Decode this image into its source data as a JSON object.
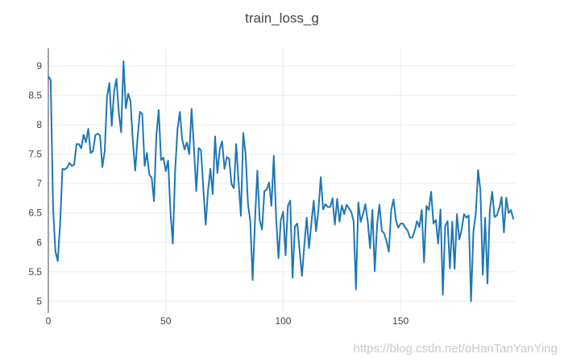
{
  "chart_data": {
    "type": "line",
    "title": "train_loss_g",
    "xlabel": "",
    "ylabel": "",
    "xlim": [
      0,
      199
    ],
    "ylim": [
      4.8,
      9.3
    ],
    "xticks": [
      0,
      50,
      100,
      150
    ],
    "yticks": [
      5,
      5.5,
      6,
      6.5,
      7,
      7.5,
      8,
      8.5,
      9
    ],
    "grid": true,
    "line_color": "#1f77b4",
    "series": [
      {
        "name": "",
        "y": [
          8.82,
          8.76,
          6.6,
          5.85,
          5.68,
          6.3,
          7.25,
          7.24,
          7.27,
          7.35,
          7.3,
          7.32,
          7.67,
          7.67,
          7.6,
          7.83,
          7.7,
          7.93,
          7.52,
          7.55,
          7.82,
          7.85,
          7.82,
          7.28,
          7.55,
          8.48,
          8.71,
          7.98,
          8.57,
          8.78,
          8.21,
          7.87,
          9.08,
          8.28,
          8.53,
          8.4,
          7.7,
          7.22,
          7.78,
          8.22,
          8.18,
          7.3,
          7.52,
          7.15,
          7.1,
          6.7,
          7.82,
          8.25,
          7.4,
          7.44,
          7.21,
          7.39,
          6.52,
          5.98,
          7.22,
          7.92,
          8.22,
          7.75,
          7.58,
          7.7,
          7.5,
          8.27,
          7.62,
          6.87,
          7.6,
          7.57,
          6.92,
          6.3,
          6.88,
          7.25,
          6.82,
          7.8,
          7.18,
          7.58,
          7.72,
          7.25,
          7.45,
          7.42,
          6.99,
          6.92,
          7.67,
          7.04,
          6.45,
          7.86,
          7.5,
          6.66,
          6.36,
          5.36,
          6.38,
          7.22,
          6.38,
          6.22,
          6.87,
          6.9,
          7.02,
          6.62,
          7.47,
          6.42,
          5.73,
          6.38,
          6.52,
          5.78,
          6.62,
          6.71,
          5.4,
          6.27,
          6.32,
          5.86,
          5.43,
          5.95,
          6.42,
          5.9,
          6.32,
          6.71,
          6.19,
          6.55,
          7.11,
          6.56,
          6.65,
          6.6,
          6.6,
          6.75,
          6.3,
          6.74,
          6.35,
          6.63,
          6.48,
          6.64,
          6.58,
          6.52,
          6.36,
          5.2,
          6.68,
          6.35,
          6.48,
          6.65,
          6.36,
          5.9,
          6.55,
          5.51,
          6.3,
          6.64,
          6.2,
          6.15,
          6.02,
          5.84,
          6.55,
          6.73,
          6.38,
          6.25,
          6.32,
          6.32,
          6.25,
          6.2,
          6.08,
          6.08,
          6.2,
          6.36,
          6.26,
          6.55,
          5.66,
          6.62,
          6.55,
          6.86,
          6.32,
          6.38,
          5.98,
          6.56,
          5.11,
          6.28,
          6.36,
          5.56,
          6.35,
          5.55,
          6.48,
          6.05,
          6.22,
          6.48,
          6.42,
          6.46,
          5.0,
          6.18,
          6.48,
          7.23,
          6.88,
          5.45,
          6.42,
          5.3,
          6.55,
          6.86,
          6.43,
          6.46,
          6.58,
          6.77,
          6.17,
          6.76,
          6.5,
          6.55,
          6.4
        ]
      }
    ]
  },
  "watermark": "https://blog.csdn.net/oHanTanYanYing"
}
